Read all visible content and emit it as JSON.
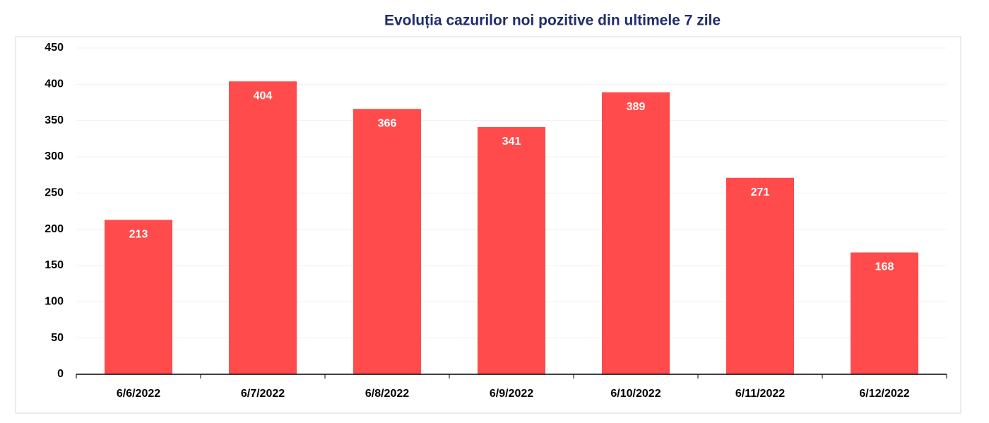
{
  "chart_data": {
    "type": "bar",
    "title": "Evoluția cazurilor noi pozitive din ultimele 7 zile",
    "categories": [
      "6/6/2022",
      "6/7/2022",
      "6/8/2022",
      "6/9/2022",
      "6/10/2022",
      "6/11/2022",
      "6/12/2022"
    ],
    "values": [
      213,
      404,
      366,
      341,
      389,
      271,
      168
    ],
    "color": "#ff4b4b",
    "ylim": [
      0,
      450
    ],
    "yticks": [
      0,
      50,
      100,
      150,
      200,
      250,
      300,
      350,
      400,
      450
    ],
    "grid": true
  }
}
